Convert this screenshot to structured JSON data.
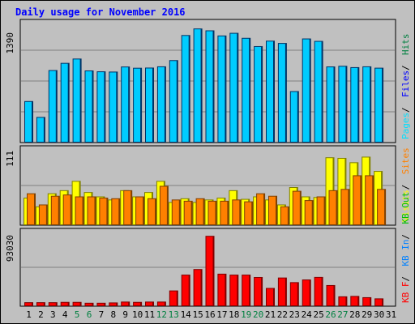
{
  "chart_data": {
    "type": "bar",
    "title": "Daily usage for November 2016",
    "categories": [
      "1",
      "2",
      "3",
      "4",
      "5",
      "6",
      "7",
      "8",
      "9",
      "10",
      "11",
      "12",
      "13",
      "14",
      "15",
      "16",
      "17",
      "18",
      "19",
      "20",
      "21",
      "22",
      "23",
      "24",
      "25",
      "26",
      "27",
      "28",
      "29",
      "30",
      "31"
    ],
    "weekend_days": [
      "5",
      "6",
      "12",
      "13",
      "19",
      "20",
      "26",
      "27"
    ],
    "panels": [
      {
        "name": "pages-files-hits",
        "scale_max": 1390,
        "legend": [
          {
            "text": "Pages",
            "color": "#00e0ff"
          },
          {
            "text": "Files",
            "color": "#0000ff"
          },
          {
            "text": "Hits",
            "color": "#008040"
          }
        ],
        "series": [
          {
            "values": [
              650,
              396,
              1145,
              1260,
              1329,
              1139,
              1125,
              1121,
              1202,
              1182,
              1185,
              1205,
              1304,
              1705,
              1810,
              1780,
              1698,
              1740,
              1660,
              1528,
              1615,
              1578,
              809,
              1650,
              1611,
              1203,
              1213,
              1192,
              1205,
              1183,
              null
            ],
            "color": "#00ccff",
            "border": "#003366"
          }
        ]
      },
      {
        "name": "visits-sites",
        "scale_max": 111,
        "legend": [
          {
            "text": "Visits",
            "color": "#ffff00"
          },
          {
            "text": "Sites",
            "color": "#ff8000"
          }
        ],
        "series": [
          {
            "values": [
              43,
              29,
              50,
              55,
              70,
              52,
              45,
              40,
              55,
              45,
              52,
              70,
              36,
              42,
              36,
              40,
              43,
              55,
              41,
              45,
              40,
              32,
              60,
              45,
              44,
              108,
              107,
              100,
              109,
              86,
              null
            ],
            "color": "#ffff00",
            "border": "#808000"
          },
          {
            "values": [
              50,
              32,
              46,
              48,
              45,
              45,
              43,
              42,
              55,
              45,
              42,
              62,
              40,
              38,
              42,
              38,
              38,
              40,
              37,
              50,
              46,
              29,
              54,
              39,
              45,
              55,
              57,
              79,
              79,
              57,
              null
            ],
            "color": "#ff8000",
            "border": "#804000"
          }
        ]
      },
      {
        "name": "kbf-kbin-kbout",
        "scale_max": 93030,
        "legend": [
          {
            "text": "KB F",
            "color": "#ff0000"
          },
          {
            "text": "KB In",
            "color": "#0080ff"
          },
          {
            "text": "KB Out",
            "color": "#00c000"
          }
        ],
        "series": [
          {
            "values": [
              4000,
              4000,
              4000,
              4400,
              4400,
              3300,
              3300,
              3700,
              4800,
              4400,
              4800,
              4800,
              19000,
              39200,
              46300,
              88700,
              40400,
              39200,
              39200,
              36200,
              22200,
              35500,
              29600,
              33000,
              36300,
              25900,
              11500,
              12000,
              10400,
              8900,
              null
            ],
            "color": "#ff0000",
            "border": "#800000"
          }
        ]
      }
    ]
  }
}
